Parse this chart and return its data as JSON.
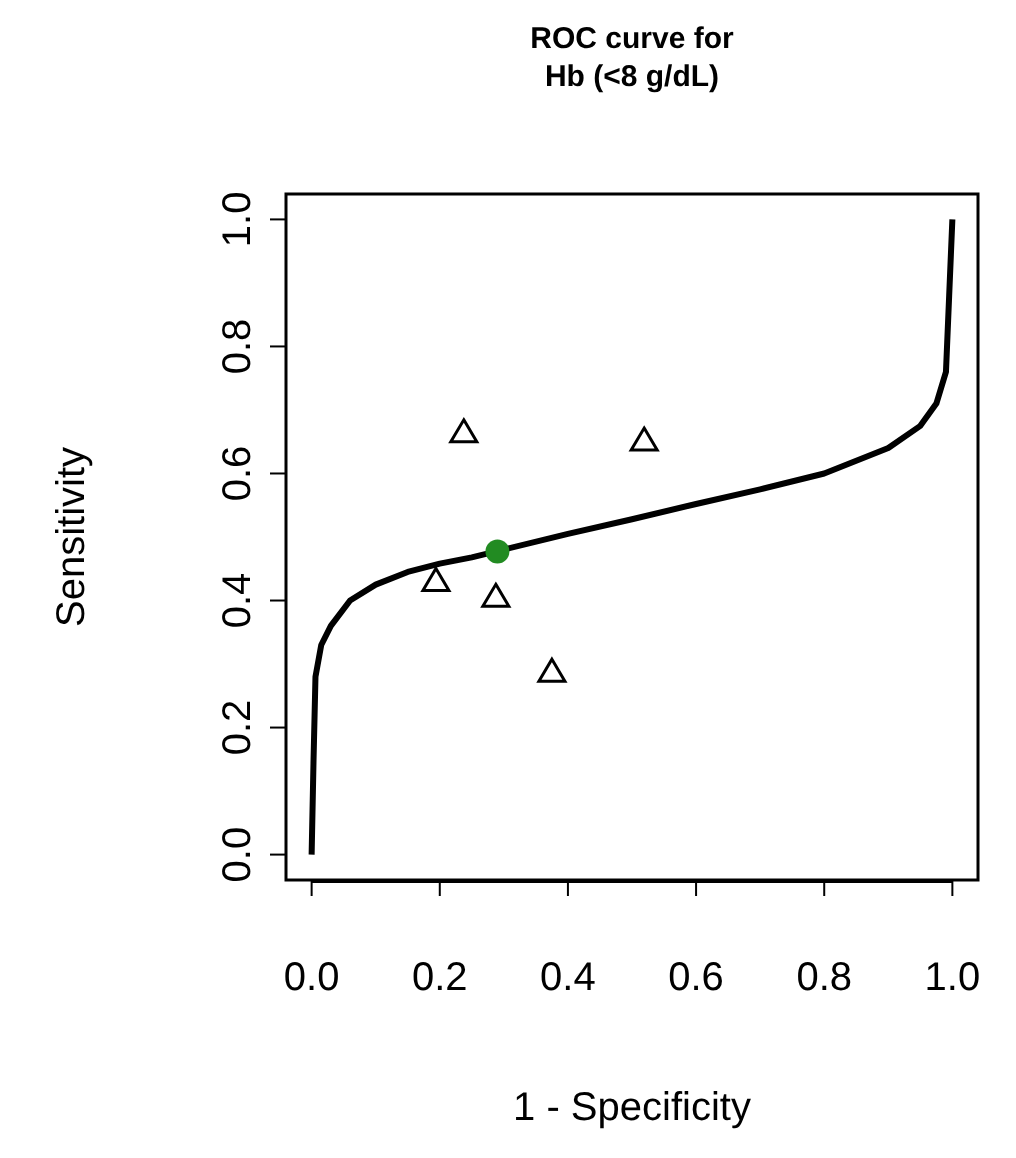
{
  "chart_data": {
    "type": "line",
    "title": "ROC curve for\nHb (<8 g/dL)",
    "xlabel": "1 - Specificity",
    "ylabel": "Sensitivity",
    "xlim": [
      -0.04,
      1.04
    ],
    "ylim": [
      -0.04,
      1.04
    ],
    "xticks": [
      {
        "value": 0,
        "label": "0.0"
      },
      0.2,
      0.4,
      0.6,
      0.8,
      {
        "value": 1,
        "label": "1.0"
      }
    ],
    "yticks": [
      {
        "value": 0,
        "label": "0.0"
      },
      0.2,
      0.4,
      0.6,
      0.8,
      {
        "value": 1,
        "label": "1.0"
      }
    ],
    "grid": false,
    "series": [
      {
        "color": "#000000",
        "marker": "none",
        "x": [
          0,
          0.003,
          0.006,
          0.015,
          0.03,
          0.06,
          0.1,
          0.15,
          0.2,
          0.25,
          0.4,
          0.5,
          0.6,
          0.7,
          0.8,
          0.9,
          0.95,
          0.975,
          0.99,
          0.995,
          1
        ],
        "values": [
          0,
          0.15,
          0.28,
          0.33,
          0.36,
          0.4,
          0.425,
          0.445,
          0.458,
          0.468,
          0.505,
          0.528,
          0.552,
          0.575,
          0.6,
          0.64,
          0.675,
          0.71,
          0.76,
          0.88,
          1
        ]
      },
      {
        "type": "scatter",
        "color": "#000000",
        "marker": "triangle",
        "x": [
          0.2375,
          0.519,
          0.194,
          0.2875,
          0.375
        ],
        "values": [
          0.664,
          0.651,
          0.43,
          0.405,
          0.287
        ]
      },
      {
        "type": "scatter",
        "color": "#228b22",
        "marker": "circle",
        "x": [
          0.29
        ],
        "values": [
          0.477
        ]
      }
    ]
  }
}
